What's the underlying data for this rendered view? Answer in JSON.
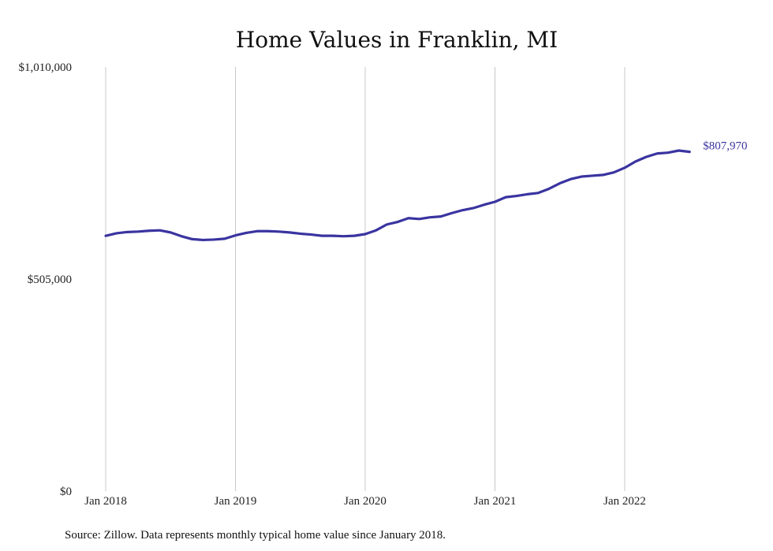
{
  "chart_data": {
    "type": "line",
    "title": "Home Values in Franklin, MI",
    "source_note": "Source: Zillow. Data represents monthly typical home value since January 2018.",
    "y_tick_labels": [
      "$1,010,000",
      "$505,000",
      "$0"
    ],
    "y_ticks": [
      1010000,
      505000,
      0
    ],
    "ylim": [
      0,
      1010000
    ],
    "x_tick_labels": [
      "Jan 2018",
      "Jan 2019",
      "Jan 2020",
      "Jan 2021",
      "Jan 2022"
    ],
    "x_ticks": [
      "2018-01",
      "2019-01",
      "2020-01",
      "2021-01",
      "2022-01"
    ],
    "vertical_grid": true,
    "line_color": "#3a34a0",
    "end_label": "$807,970",
    "series": [
      {
        "x": [
          "2018-01",
          "2018-02",
          "2018-03",
          "2018-04",
          "2018-05",
          "2018-06",
          "2018-07",
          "2018-08",
          "2018-09",
          "2018-10",
          "2018-11",
          "2018-12",
          "2019-01",
          "2019-02",
          "2019-03",
          "2019-04",
          "2019-05",
          "2019-06",
          "2019-07",
          "2019-08",
          "2019-09",
          "2019-10",
          "2019-11",
          "2019-12",
          "2020-01",
          "2020-02",
          "2020-03",
          "2020-04",
          "2020-05",
          "2020-06",
          "2020-07",
          "2020-08",
          "2020-09",
          "2020-10",
          "2020-11",
          "2020-12",
          "2021-01",
          "2021-02",
          "2021-03",
          "2021-04",
          "2021-05",
          "2021-06",
          "2021-07",
          "2021-08",
          "2021-09",
          "2021-10",
          "2021-11",
          "2021-12",
          "2022-01",
          "2022-02",
          "2022-03",
          "2022-04",
          "2022-05",
          "2022-06",
          "2022-07"
        ],
        "values": [
          608000,
          614000,
          617000,
          618000,
          620000,
          621000,
          616000,
          607000,
          600000,
          598000,
          599000,
          601000,
          609000,
          615000,
          619000,
          619000,
          618000,
          616000,
          613000,
          611000,
          608000,
          608000,
          607000,
          608000,
          612000,
          621000,
          635000,
          641000,
          650000,
          648000,
          652000,
          654000,
          662000,
          669000,
          674000,
          682000,
          689000,
          700000,
          703000,
          707000,
          710000,
          720000,
          733000,
          743000,
          749000,
          751000,
          753000,
          759000,
          770000,
          785000,
          796000,
          804000,
          806000,
          811000,
          807970
        ]
      }
    ]
  }
}
